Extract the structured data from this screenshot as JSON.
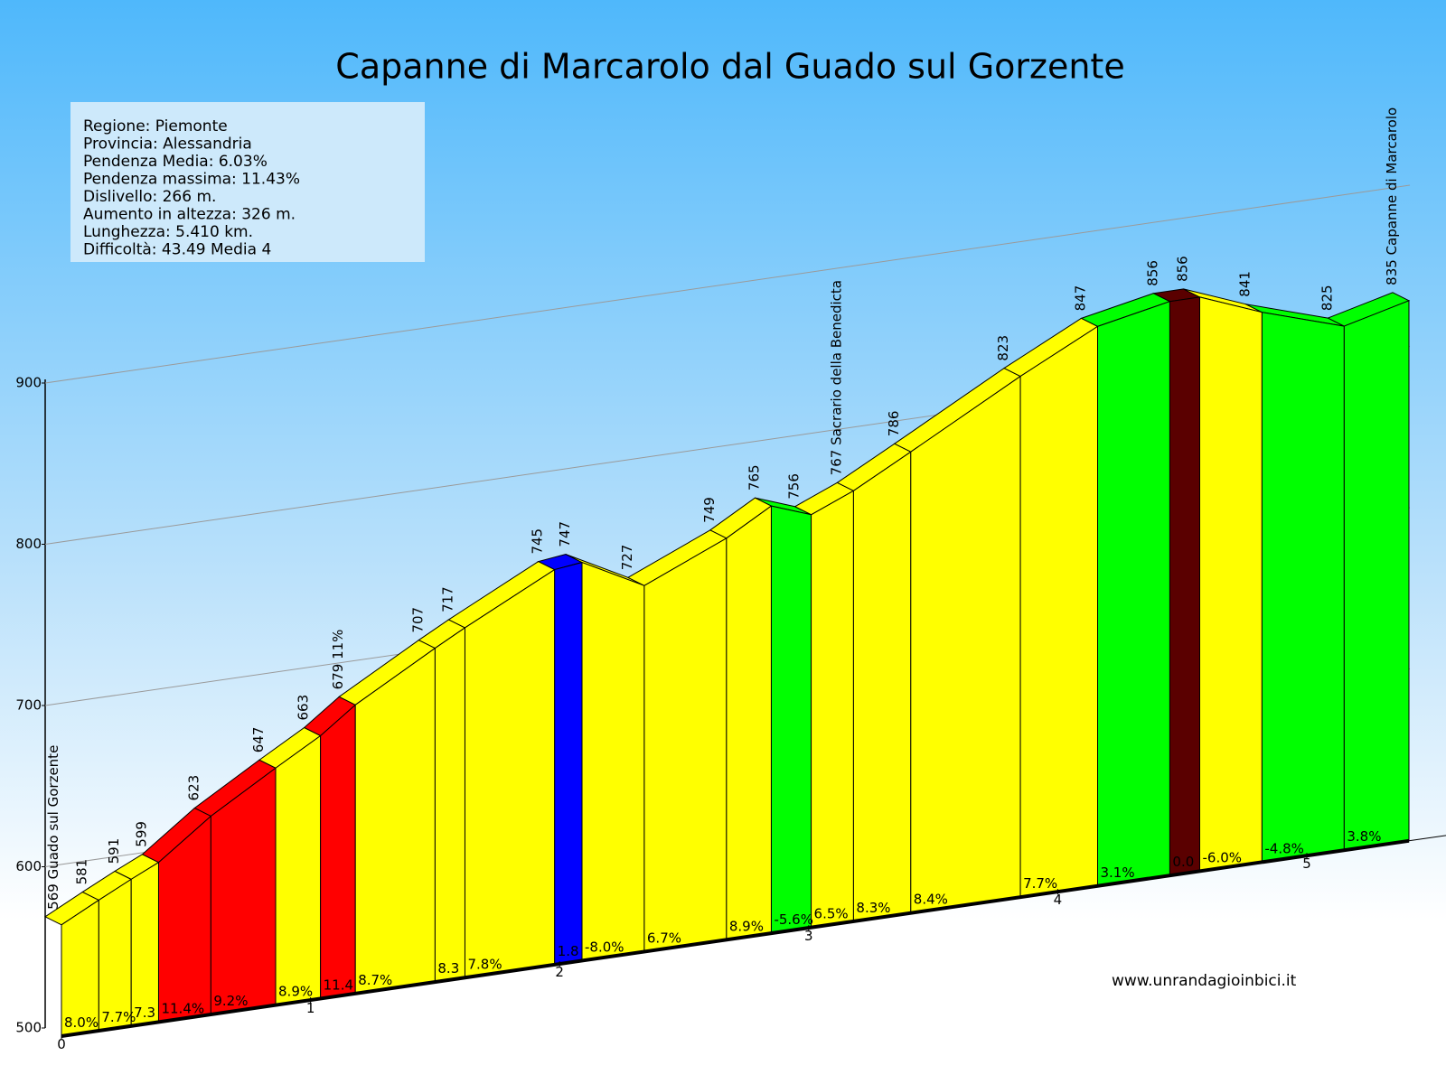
{
  "chart_data": {
    "type": "elevation-profile",
    "title": "Capanne di Marcarolo dal Guado sul Gorzente",
    "info": [
      "Regione: Piemonte",
      "Provincia: Alessandria",
      "Pendenza Media: 6.03%",
      "Pendenza massima: 11.43%",
      "Dislivello:   266 m.",
      "Aumento in altezza:   326 m.",
      "Lunghezza:  5.410 km.",
      "Difficoltà: 43.49 Media 4"
    ],
    "source": "www.unrandagioinbici.it",
    "x": [
      0,
      0.15,
      0.28,
      0.39,
      0.6,
      0.86,
      1.04,
      1.18,
      1.5,
      1.62,
      1.98,
      2.09,
      2.34,
      2.67,
      2.85,
      3.01,
      3.18,
      3.41,
      3.85,
      4.16,
      4.45,
      4.57,
      4.82,
      5.15,
      5.41
    ],
    "values": [
      569,
      581,
      591,
      599,
      623,
      647,
      663,
      679,
      707,
      717,
      745,
      747,
      727,
      749,
      765,
      756,
      767,
      786,
      823,
      847,
      856,
      856,
      841,
      825,
      835
    ],
    "value_labels": [
      "569 Guado sul Gorzente",
      "581",
      "591",
      "599",
      "623",
      "647",
      "663",
      "679 11%",
      "707",
      "717",
      "745",
      "747",
      "727",
      "749",
      "765",
      "756",
      "767 Sacrario della Benedicta",
      "786",
      "823",
      "847",
      "856",
      "856",
      "841",
      "825",
      "835 Capanne di Marcarolo"
    ],
    "segments": {
      "values": [
        8.0,
        7.7,
        7.3,
        11.4,
        9.2,
        8.9,
        11.4,
        8.7,
        8.3,
        7.8,
        1.8,
        -8.0,
        6.7,
        8.9,
        -5.6,
        6.5,
        8.3,
        8.4,
        7.7,
        3.1,
        0.0,
        -6.0,
        -4.8,
        3.8
      ],
      "value_labels": [
        "8.0%",
        "7.7%",
        "7.3",
        "11.4%",
        "9.2%",
        "8.9%",
        "11.4",
        "8.7%",
        "8.3",
        "7.8%",
        "1.8",
        "-8.0%",
        "6.7%",
        "8.9%",
        "-5.6%",
        "6.5%",
        "8.3%",
        "8.4%",
        "7.7%",
        "3.1%",
        "0.0",
        "-6.0%",
        "-4.8%",
        "3.8%"
      ],
      "colors": [
        "#ffff00",
        "#ffff00",
        "#ffff00",
        "#ff0000",
        "#ff0000",
        "#ffff00",
        "#ff0000",
        "#ffff00",
        "#ffff00",
        "#ffff00",
        "#0000ff",
        "#ffff00",
        "#ffff00",
        "#ffff00",
        "#00ff00",
        "#ffff00",
        "#ffff00",
        "#ffff00",
        "#ffff00",
        "#00ff00",
        "#5a0000",
        "#ffff00",
        "#00ff00",
        "#00ff00"
      ]
    },
    "xlim": [
      0,
      5.41
    ],
    "xticks": [
      0,
      1,
      2,
      3,
      4,
      5
    ],
    "ylim": [
      500,
      900
    ],
    "yticks": [
      500,
      600,
      700,
      800,
      900
    ],
    "grid": true
  }
}
